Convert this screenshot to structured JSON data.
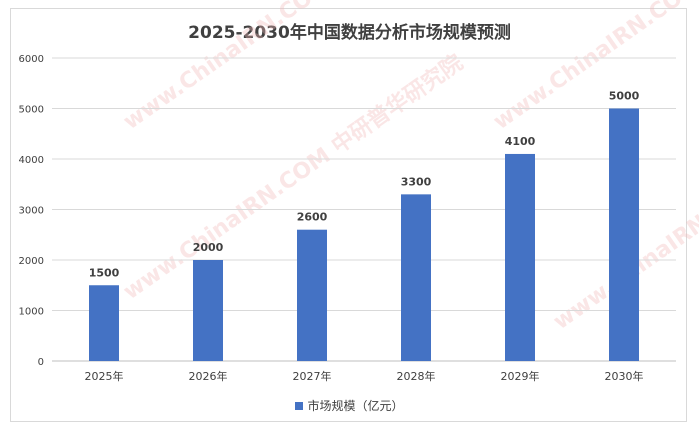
{
  "chart_data": {
    "type": "bar",
    "title": "2025-2030年中国数据分析市场规模预测",
    "categories": [
      "2025年",
      "2026年",
      "2027年",
      "2028年",
      "2029年",
      "2030年"
    ],
    "series": [
      {
        "name": "市场规模（亿元）",
        "values": [
          1500,
          2000,
          2600,
          3300,
          4100,
          5000
        ],
        "color": "#4472c4"
      }
    ],
    "ylim": [
      0,
      6000
    ],
    "yticks": [
      0,
      1000,
      2000,
      3000,
      4000,
      5000,
      6000
    ],
    "grid": true,
    "legend": "bottom",
    "data_labels": true
  },
  "watermark": "www.ChinaIRN.COM 中研普华研究院"
}
